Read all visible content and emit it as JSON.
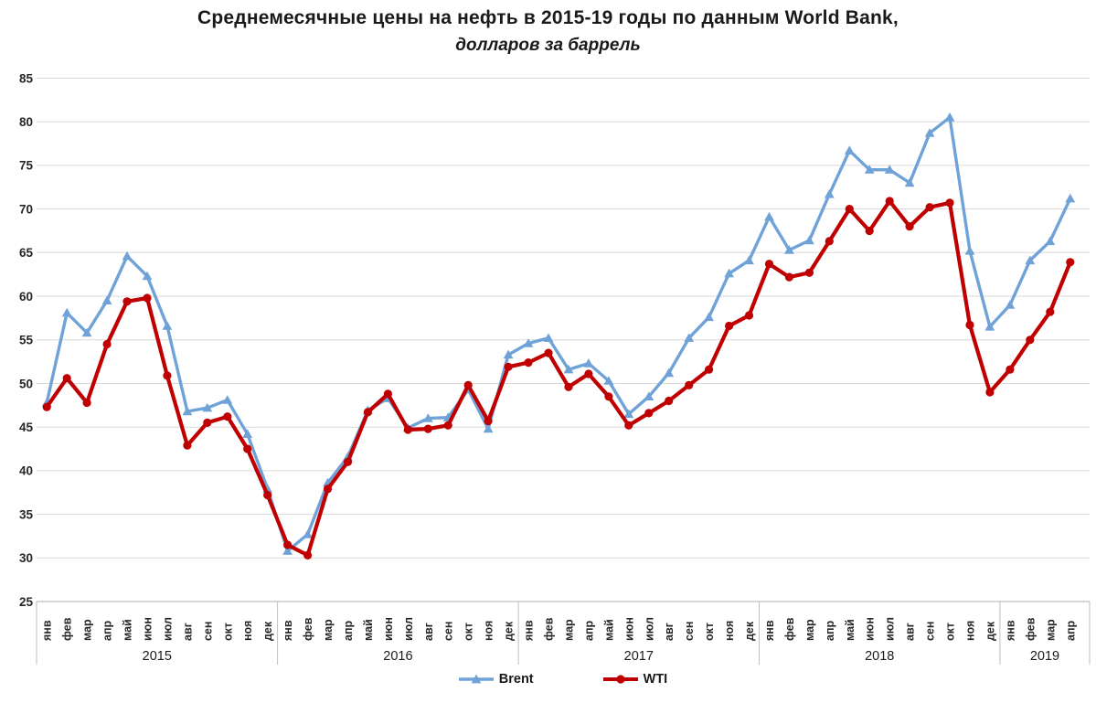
{
  "title": "Среднемесячные цены на нефть в 2015-19 годы по данным World Bank,",
  "subtitle": "долларов за баррель",
  "chart_data": {
    "type": "line",
    "title": "Среднемесячные цены на нефть в 2015-19 годы по данным World Bank,",
    "subtitle": "долларов за баррель",
    "grid": true,
    "legend_position": "bottom",
    "y_axis": {
      "min": 25,
      "max": 85,
      "step": 5,
      "tick_labels": [
        "85",
        "80",
        "75",
        "70",
        "65",
        "60",
        "55",
        "50",
        "45",
        "40",
        "35",
        "30",
        "25"
      ]
    },
    "x_axis": {
      "month_labels": [
        "янв",
        "фев",
        "мар",
        "апр",
        "май",
        "июн",
        "июл",
        "авг",
        "сен",
        "окт",
        "ноя",
        "дек"
      ],
      "year_groups": [
        {
          "label": "2015",
          "months": 12
        },
        {
          "label": "2016",
          "months": 12
        },
        {
          "label": "2017",
          "months": 12
        },
        {
          "label": "2018",
          "months": 12
        },
        {
          "label": "2019",
          "months": 4
        }
      ]
    },
    "series": [
      {
        "name": "Brent",
        "color": "#6fa3d8",
        "marker": "triangle",
        "values": [
          47.8,
          58.1,
          55.8,
          59.5,
          64.6,
          62.3,
          56.6,
          46.8,
          47.2,
          48.1,
          44.2,
          37.9,
          30.8,
          32.7,
          38.6,
          41.6,
          46.9,
          48.3,
          44.9,
          46.0,
          46.1,
          49.3,
          44.8,
          53.3,
          54.6,
          55.2,
          51.6,
          52.3,
          50.3,
          46.5,
          48.5,
          51.2,
          55.2,
          57.6,
          62.6,
          64.1,
          69.1,
          65.3,
          66.4,
          71.7,
          76.7,
          74.5,
          74.5,
          73.0,
          78.7,
          80.5,
          65.2,
          56.5,
          59.0,
          64.1,
          66.3,
          71.2
        ]
      },
      {
        "name": "WTI",
        "color": "#c00000",
        "marker": "circle",
        "values": [
          47.3,
          50.6,
          47.8,
          54.5,
          59.4,
          59.8,
          50.9,
          42.9,
          45.5,
          46.2,
          42.5,
          37.2,
          31.5,
          30.3,
          37.9,
          41.0,
          46.7,
          48.8,
          44.7,
          44.8,
          45.2,
          49.8,
          45.7,
          51.9,
          52.4,
          53.5,
          49.6,
          51.1,
          48.5,
          45.2,
          46.6,
          48.0,
          49.8,
          51.6,
          56.6,
          57.8,
          63.7,
          62.2,
          62.7,
          66.3,
          70.0,
          67.5,
          70.9,
          68.0,
          70.2,
          70.7,
          56.7,
          49.0,
          51.6,
          55.0,
          58.2,
          63.9
        ]
      }
    ],
    "colors": {
      "gridline": "#d9d9d9",
      "axis_line": "#bfbfbf",
      "tick_text": "#262626",
      "year_text": "#1a1a1a"
    }
  }
}
